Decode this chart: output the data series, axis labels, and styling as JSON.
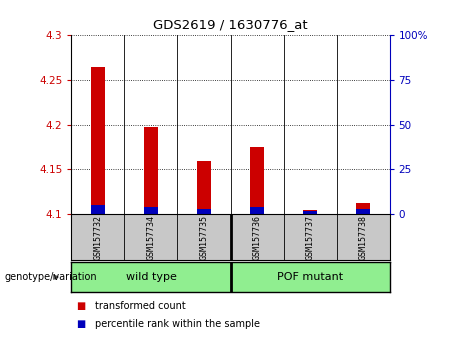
{
  "title": "GDS2619 / 1630776_at",
  "samples": [
    "GSM157732",
    "GSM157734",
    "GSM157735",
    "GSM157736",
    "GSM157737",
    "GSM157738"
  ],
  "transformed_counts": [
    4.265,
    4.197,
    4.16,
    4.175,
    4.105,
    4.113
  ],
  "percentile_ranks_pct": [
    5,
    4,
    3,
    4,
    2,
    3
  ],
  "bar_base": 4.1,
  "ylim": [
    4.1,
    4.3
  ],
  "y2lim": [
    0,
    100
  ],
  "yticks": [
    4.1,
    4.15,
    4.2,
    4.25,
    4.3
  ],
  "ytick_labels": [
    "4.1",
    "4.15",
    "4.2",
    "4.25",
    "4.3"
  ],
  "y2ticks": [
    0,
    25,
    50,
    75,
    100
  ],
  "y2tick_labels": [
    "0",
    "25",
    "50",
    "75",
    "100%"
  ],
  "red_color": "#CC0000",
  "blue_color": "#0000BB",
  "bar_width": 0.25,
  "tick_label_area_color": "#C8C8C8",
  "group_bar_color": "#90EE90",
  "group_border_color": "#006600",
  "genotype_label": "genotype/variation",
  "group_labels": [
    "wild type",
    "POF mutant"
  ],
  "group_split": 2.5,
  "legend_labels": [
    "transformed count",
    "percentile rank within the sample"
  ],
  "legend_colors": [
    "#CC0000",
    "#0000BB"
  ]
}
